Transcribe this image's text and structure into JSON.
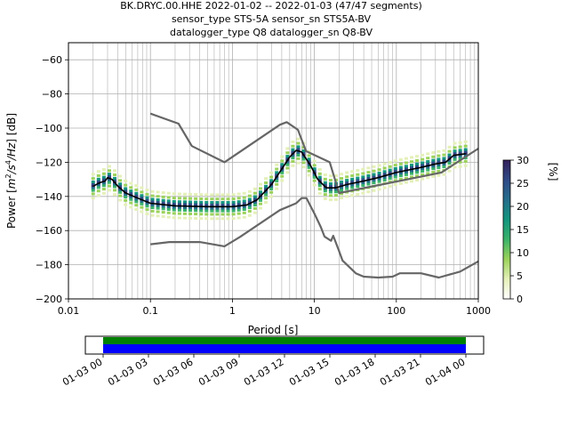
{
  "title_lines": [
    "BK.DRYC.00.HHE   2022-01-02 -- 2022-01-03  (47/47 segments)",
    "sensor_type STS-5A sensor_sn STS5A-BV",
    "datalogger_type Q8 datalogger_sn Q8-BV"
  ],
  "chart_data": {
    "type": "heatmap",
    "xlabel": "Period [s]",
    "ylabel_parts": [
      "Power [",
      "m",
      "2",
      "/s",
      "4",
      "/Hz",
      "] [dB]"
    ],
    "x_scale": "log",
    "xlim": [
      0.01,
      1000
    ],
    "ylim": [
      -200,
      -50
    ],
    "x_ticks": [
      0.01,
      0.1,
      1,
      10,
      100,
      1000
    ],
    "x_tick_labels": [
      "0.01",
      "0.1",
      "1",
      "10",
      "100",
      "1000"
    ],
    "y_ticks": [
      -200,
      -180,
      -160,
      -140,
      -120,
      -100,
      -80,
      -60
    ],
    "y_tick_labels": [
      "−200",
      "−180",
      "−160",
      "−140",
      "−120",
      "−100",
      "−80",
      "−60"
    ],
    "grid": true,
    "colorbar": {
      "label": "[%]",
      "range": [
        0,
        30
      ],
      "ticks": [
        0,
        5,
        10,
        15,
        20,
        25,
        30
      ],
      "tick_labels": [
        "0",
        "5",
        "10",
        "15",
        "20",
        "25",
        "30"
      ],
      "colors": [
        "#ffffff",
        "#e4f0b8",
        "#9bd25a",
        "#3ab26a",
        "#12957e",
        "#256d8c",
        "#2f4a86",
        "#34205a"
      ]
    },
    "noise_model_high": [
      [
        0.1,
        -91.5
      ],
      [
        0.22,
        -97.4
      ],
      [
        0.32,
        -110.5
      ],
      [
        0.8,
        -120
      ],
      [
        3.8,
        -98
      ],
      [
        4.6,
        -96.5
      ],
      [
        6.3,
        -101
      ],
      [
        7.9,
        -113.5
      ],
      [
        15.4,
        -120
      ],
      [
        20,
        -138
      ],
      [
        354.8,
        -126
      ],
      [
        1000,
        -112
      ]
    ],
    "noise_model_low": [
      [
        0.1,
        -168
      ],
      [
        0.17,
        -166.7
      ],
      [
        0.4,
        -166.7
      ],
      [
        0.8,
        -169.2
      ],
      [
        1.24,
        -163.7
      ],
      [
        3.79,
        -148
      ],
      [
        6,
        -144
      ],
      [
        7,
        -141
      ],
      [
        8,
        -141
      ],
      [
        10,
        -150
      ],
      [
        12,
        -158
      ],
      [
        13.3,
        -163.5
      ],
      [
        16,
        -166
      ],
      [
        17,
        -163
      ],
      [
        20,
        -172
      ],
      [
        22,
        -177.5
      ],
      [
        32,
        -185
      ],
      [
        40,
        -187
      ],
      [
        60,
        -187.5
      ],
      [
        90,
        -187
      ],
      [
        110,
        -185
      ],
      [
        200,
        -185
      ],
      [
        330,
        -187.5
      ],
      [
        600,
        -184
      ],
      [
        1000,
        -178
      ]
    ],
    "median_series": [
      [
        0.02,
        -134
      ],
      [
        0.024,
        -132
      ],
      [
        0.028,
        -131
      ],
      [
        0.03,
        -129
      ],
      [
        0.034,
        -130
      ],
      [
        0.04,
        -134
      ],
      [
        0.05,
        -138
      ],
      [
        0.07,
        -141
      ],
      [
        0.1,
        -144
      ],
      [
        0.2,
        -145.5
      ],
      [
        0.5,
        -146
      ],
      [
        1,
        -146
      ],
      [
        1.5,
        -145
      ],
      [
        2,
        -142
      ],
      [
        3,
        -133
      ],
      [
        4,
        -124
      ],
      [
        5,
        -117
      ],
      [
        6,
        -113
      ],
      [
        7,
        -114
      ],
      [
        9,
        -122
      ],
      [
        11,
        -130
      ],
      [
        14,
        -135
      ],
      [
        18,
        -135
      ],
      [
        25,
        -133
      ],
      [
        40,
        -131
      ],
      [
        60,
        -129
      ],
      [
        100,
        -126
      ],
      [
        200,
        -123
      ],
      [
        300,
        -121
      ],
      [
        400,
        -120
      ],
      [
        500,
        -116
      ],
      [
        700,
        -115
      ]
    ],
    "timeline": {
      "bar_colors": [
        "#008000",
        "#0000ff"
      ],
      "tick_labels": [
        "01-03 00",
        "01-03 03",
        "01-03 06",
        "01-03 09",
        "01-03 12",
        "01-03 15",
        "01-03 18",
        "01-03 21",
        "01-04 00"
      ]
    }
  }
}
